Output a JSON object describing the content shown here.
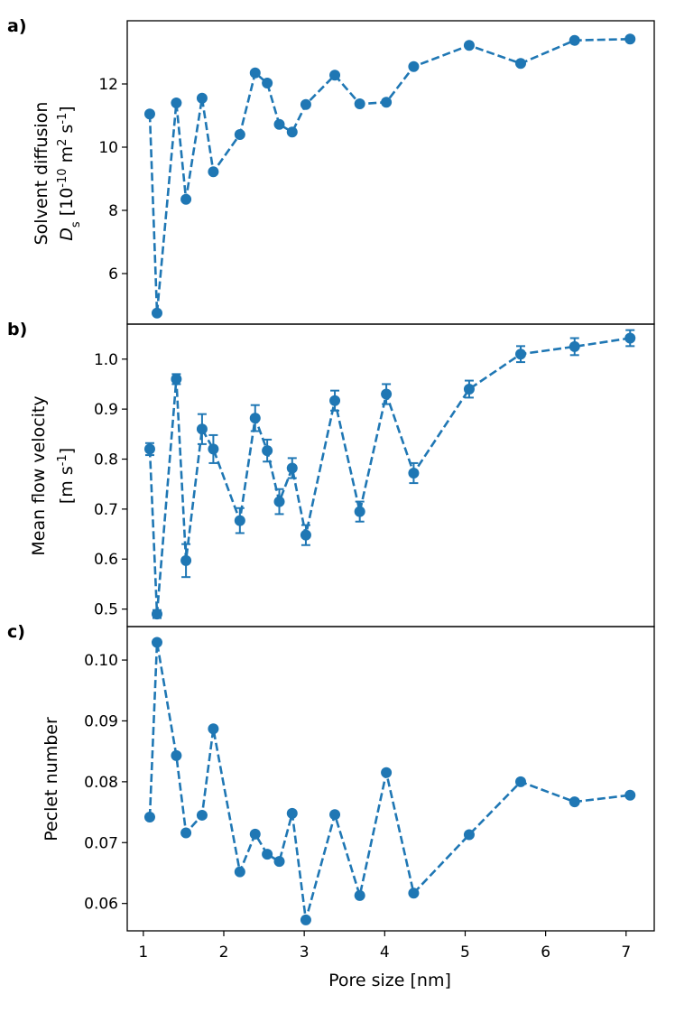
{
  "figure": {
    "xlabel": "Pore size [nm]",
    "color": "#1f77b4"
  },
  "chart_data": [
    {
      "type": "line",
      "panel": "a)",
      "ylabel_lines": [
        "Solvent diffusion",
        "D_s [10^-10 m^2 s^-1]"
      ],
      "ylim": [
        4.4,
        14.0
      ],
      "yticks": [
        6,
        8,
        10,
        12
      ],
      "xlim": [
        0.8,
        7.35
      ],
      "xticks": [
        1,
        2,
        3,
        4,
        5,
        6,
        7
      ],
      "x": [
        1.08,
        1.17,
        1.41,
        1.53,
        1.73,
        1.87,
        2.2,
        2.39,
        2.54,
        2.69,
        2.85,
        3.02,
        3.38,
        3.69,
        4.02,
        4.36,
        5.05,
        5.69,
        6.36,
        7.05
      ],
      "values": [
        11.05,
        4.75,
        11.4,
        8.35,
        11.55,
        9.22,
        10.4,
        12.35,
        12.03,
        10.72,
        10.48,
        11.35,
        12.28,
        11.37,
        11.42,
        12.55,
        13.22,
        12.65,
        13.38,
        13.42
      ],
      "errors": null,
      "linestyle": "dashed",
      "marker": "circle"
    },
    {
      "type": "line",
      "panel": "b)",
      "ylabel_lines": [
        "Mean flow velocity",
        "[m s^-1]"
      ],
      "ylim": [
        0.465,
        1.07
      ],
      "yticks": [
        0.5,
        0.6,
        0.7,
        0.8,
        0.9,
        1.0
      ],
      "xlim": [
        0.8,
        7.35
      ],
      "xticks": [
        1,
        2,
        3,
        4,
        5,
        6,
        7
      ],
      "x": [
        1.08,
        1.17,
        1.41,
        1.53,
        1.73,
        1.87,
        2.2,
        2.39,
        2.54,
        2.69,
        2.85,
        3.02,
        3.38,
        3.69,
        4.02,
        4.36,
        5.05,
        5.69,
        6.36,
        7.05
      ],
      "values": [
        0.82,
        0.49,
        0.96,
        0.597,
        0.86,
        0.82,
        0.677,
        0.882,
        0.817,
        0.715,
        0.782,
        0.648,
        0.917,
        0.695,
        0.93,
        0.772,
        0.94,
        1.01,
        1.025,
        1.042
      ],
      "errors": [
        0.012,
        0.008,
        0.01,
        0.033,
        0.03,
        0.028,
        0.025,
        0.026,
        0.022,
        0.025,
        0.02,
        0.02,
        0.02,
        0.02,
        0.02,
        0.02,
        0.017,
        0.016,
        0.017,
        0.016
      ],
      "linestyle": "dashed",
      "marker": "circle"
    },
    {
      "type": "line",
      "panel": "c)",
      "ylabel_lines": [
        "Peclet number"
      ],
      "ylim": [
        0.0555,
        0.1055
      ],
      "yticks": [
        0.06,
        0.07,
        0.08,
        0.09,
        0.1
      ],
      "xlim": [
        0.8,
        7.35
      ],
      "xticks": [
        1,
        2,
        3,
        4,
        5,
        6,
        7
      ],
      "x": [
        1.08,
        1.17,
        1.41,
        1.53,
        1.73,
        1.87,
        2.2,
        2.39,
        2.54,
        2.69,
        2.85,
        3.02,
        3.38,
        3.69,
        4.02,
        4.36,
        5.05,
        5.69,
        6.36,
        7.05
      ],
      "values": [
        0.0742,
        0.1029,
        0.0843,
        0.0716,
        0.0745,
        0.0887,
        0.0652,
        0.0714,
        0.0681,
        0.0669,
        0.0748,
        0.0573,
        0.0746,
        0.0613,
        0.0815,
        0.0617,
        0.0713,
        0.08,
        0.0767,
        0.0778
      ],
      "errors": null,
      "linestyle": "dashed",
      "marker": "circle"
    }
  ]
}
